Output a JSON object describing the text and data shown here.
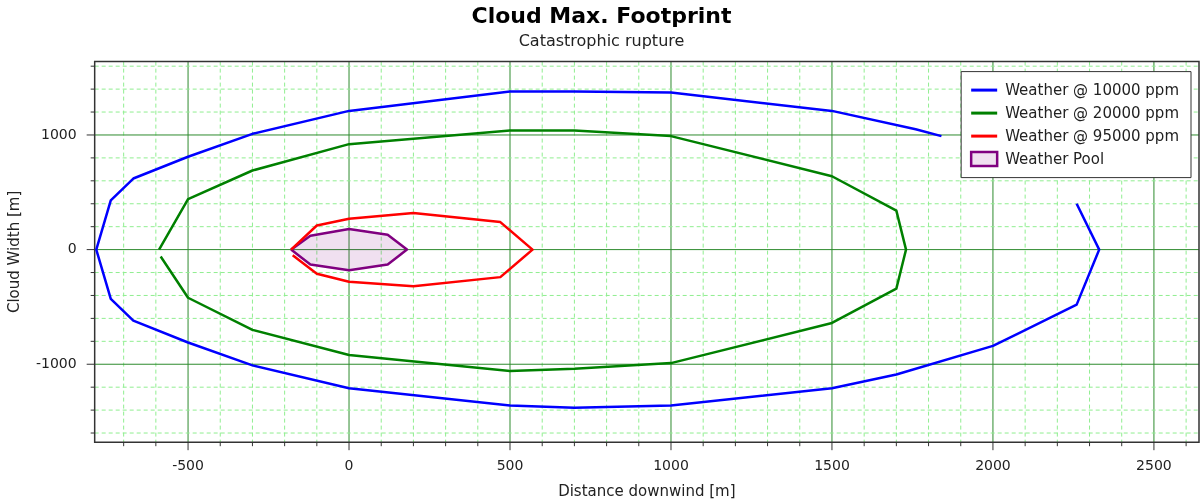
{
  "chart_data": {
    "type": "line",
    "title": "Cloud Max. Footprint",
    "subtitle": "Catastrophic rupture",
    "xlabel": "Distance downwind [m]",
    "ylabel": "Cloud Width [m]",
    "xlim": [
      -790,
      2640
    ],
    "ylim": [
      -1680,
      1640
    ],
    "xticks": [
      {
        "value": -700,
        "label": null
      },
      {
        "value": -600,
        "label": null
      },
      -500,
      {
        "value": -400,
        "label": null
      },
      {
        "value": -300,
        "label": null
      },
      {
        "value": -200,
        "label": null
      },
      {
        "value": -100,
        "label": null
      },
      0,
      {
        "value": 100,
        "label": null
      },
      {
        "value": 200,
        "label": null
      },
      {
        "value": 300,
        "label": null
      },
      {
        "value": 400,
        "label": null
      },
      500,
      {
        "value": 600,
        "label": null
      },
      {
        "value": 700,
        "label": null
      },
      {
        "value": 800,
        "label": null
      },
      {
        "value": 900,
        "label": null
      },
      1000,
      {
        "value": 1100,
        "label": null
      },
      {
        "value": 1200,
        "label": null
      },
      {
        "value": 1300,
        "label": null
      },
      {
        "value": 1400,
        "label": null
      },
      1500,
      {
        "value": 1600,
        "label": null
      },
      {
        "value": 1700,
        "label": null
      },
      {
        "value": 1800,
        "label": null
      },
      {
        "value": 1900,
        "label": null
      },
      2000,
      {
        "value": 2100,
        "label": null
      },
      {
        "value": 2200,
        "label": null
      },
      {
        "value": 2300,
        "label": null
      },
      {
        "value": 2400,
        "label": null
      },
      2500,
      {
        "value": 2600,
        "label": null
      }
    ],
    "yticks": [
      {
        "value": -1600,
        "label": null
      },
      {
        "value": -1400,
        "label": null
      },
      {
        "value": -1200,
        "label": null
      },
      -1000,
      {
        "value": -800,
        "label": null
      },
      {
        "value": -600,
        "label": null
      },
      {
        "value": -400,
        "label": null
      },
      {
        "value": -200,
        "label": null
      },
      0,
      {
        "value": 200,
        "label": null
      },
      {
        "value": 400,
        "label": null
      },
      {
        "value": 600,
        "label": null
      },
      {
        "value": 800,
        "label": null
      },
      1000,
      {
        "value": 1200,
        "label": null
      },
      {
        "value": 1400,
        "label": null
      },
      {
        "value": 1600,
        "label": null
      }
    ],
    "grid": true,
    "legend": "top right",
    "marker": "none",
    "series": [
      {
        "name": "Weather @ 10000 ppm",
        "color": "#0000ff",
        "x": [
          2260,
          2330,
          2260,
          2000,
          1700,
          1500,
          1000,
          700,
          500,
          0,
          -300,
          -500,
          -670,
          -740,
          -785,
          -740,
          -670,
          -500,
          -300,
          0,
          500,
          700,
          1000,
          1500,
          1760,
          1840
        ],
        "values": [
          400,
          0,
          -480,
          -840,
          -1090,
          -1210,
          -1360,
          -1380,
          -1360,
          -1210,
          -1010,
          -810,
          -620,
          -430,
          0,
          430,
          620,
          810,
          1010,
          1210,
          1380,
          1380,
          1370,
          1210,
          1050,
          990
        ]
      },
      {
        "name": "Weather @ 20000 ppm",
        "color": "#008000",
        "x": [
          -590,
          -500,
          -300,
          0,
          500,
          700,
          1000,
          1500,
          1700,
          1730,
          1700,
          1500,
          1000,
          700,
          500,
          0,
          -300,
          -500,
          -585
        ],
        "values": [
          0,
          440,
          690,
          920,
          1040,
          1040,
          990,
          640,
          340,
          0,
          -340,
          -640,
          -990,
          -1040,
          -1060,
          -920,
          -700,
          -420,
          -60
        ]
      },
      {
        "name": "Weather @ 95000 ppm",
        "color": "#ff0000",
        "x": [
          -180,
          -100,
          0,
          200,
          470,
          570,
          470,
          200,
          0,
          -100,
          -175
        ],
        "values": [
          0,
          210,
          270,
          320,
          240,
          0,
          -240,
          -320,
          -280,
          -210,
          -50
        ]
      },
      {
        "name": "Weather Pool",
        "type": "area",
        "color": "#800080",
        "x": [
          -180,
          -120,
          0,
          120,
          180,
          120,
          0,
          -120,
          -180
        ],
        "values": [
          0,
          120,
          180,
          130,
          0,
          -130,
          -180,
          -130,
          0
        ]
      }
    ]
  }
}
